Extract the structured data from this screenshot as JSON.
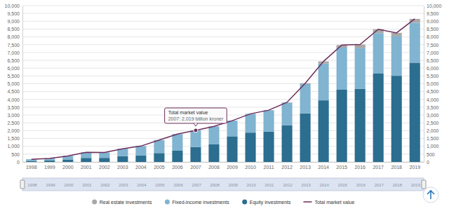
{
  "chart_data": {
    "type": "bar",
    "stacked": true,
    "grid": true,
    "legend": "bottom",
    "categories": [
      "1998",
      "1999",
      "2000",
      "2001",
      "2002",
      "2003",
      "2004",
      "2005",
      "2006",
      "2007",
      "2008",
      "2009",
      "2010",
      "2011",
      "2012",
      "2013",
      "2014",
      "2015",
      "2016",
      "2017",
      "2018",
      "2019"
    ],
    "series": [
      {
        "name": "Equity investments",
        "type": "bar",
        "color": "#2b6e8f",
        "values": [
          70,
          102,
          155,
          258,
          260,
          375,
          410,
          568,
          718,
          953,
          1125,
          1640,
          1875,
          1945,
          2336,
          3111,
          3940,
          4620,
          4680,
          5650,
          5510,
          6350
        ]
      },
      {
        "name": "Fixed-income investments",
        "type": "bar",
        "color": "#80b4d0",
        "values": [
          102,
          120,
          231,
          356,
          349,
          470,
          606,
          831,
          1066,
          1066,
          1150,
          1000,
          1202,
          1362,
          1455,
          1867,
          2350,
          2690,
          2590,
          2590,
          2520,
          2550
        ]
      },
      {
        "name": "Real estate investments",
        "type": "bar",
        "color": "#a8a8a8",
        "values": [
          0,
          0,
          0,
          0,
          0,
          0,
          0,
          0,
          0,
          0,
          0,
          0,
          0,
          5,
          25,
          60,
          141,
          165,
          240,
          248,
          226,
          250
        ]
      },
      {
        "name": "Total market value",
        "type": "line",
        "color": "#6b2d5c",
        "values": [
          172,
          222,
          386,
          614,
          609,
          845,
          1016,
          1399,
          1784,
          2019,
          2275,
          2640,
          3077,
          3312,
          3816,
          5038,
          6431,
          7475,
          7510,
          8488,
          8256,
          9150
        ]
      }
    ],
    "ylim": [
      0,
      10000
    ],
    "yticks": [
      0,
      500,
      {
        "value": 1000,
        "label": "1,000"
      },
      {
        "value": 1500,
        "label": "1,500"
      },
      {
        "value": 2000,
        "label": "2,000"
      },
      {
        "value": 2500,
        "label": "2,500"
      },
      {
        "value": 3000,
        "label": "3,000"
      },
      {
        "value": 3500,
        "label": "3,500"
      },
      {
        "value": 4000,
        "label": "4,000"
      },
      {
        "value": 4500,
        "label": "4,500"
      },
      {
        "value": 5000,
        "label": "5,000"
      },
      {
        "value": 5500,
        "label": "5,500"
      },
      {
        "value": 6000,
        "label": "6,000"
      },
      {
        "value": 6500,
        "label": "6,500"
      },
      {
        "value": 7000,
        "label": "7,000"
      },
      {
        "value": 7500,
        "label": "7,500"
      },
      {
        "value": 8000,
        "label": "8,000"
      },
      {
        "value": 8500,
        "label": "8,500"
      },
      {
        "value": 9000,
        "label": "9,000"
      },
      {
        "value": 9500,
        "label": "9,500"
      },
      {
        "value": 10000,
        "label": "10,000"
      }
    ],
    "annotations": [
      {
        "title": "Total market value",
        "text": "2007: 2,019 billion kroner",
        "x": "2007"
      }
    ]
  }
}
